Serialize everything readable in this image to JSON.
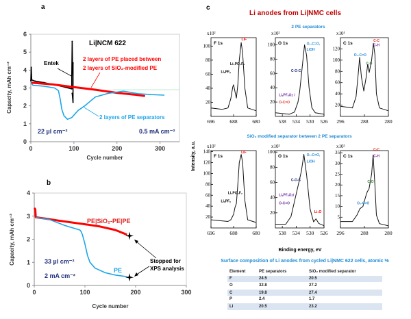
{
  "chart_data": [
    {
      "panel_label": "a",
      "type": "line",
      "xlabel": "Cycle number",
      "ylabel": "Capacity, mAh cm⁻²",
      "xlim": [
        0,
        345
      ],
      "ylim": [
        0,
        6
      ],
      "xticks": [
        "0",
        "100",
        "200",
        "300"
      ],
      "yticks": [
        "0",
        "1",
        "2",
        "3",
        "4",
        "5",
        "6"
      ],
      "grid": false,
      "series": [
        {
          "name": "Entek",
          "color": "#000000",
          "points": [
            [
              0,
              3.4
            ],
            [
              1,
              4.15
            ],
            [
              2,
              3.45
            ],
            [
              10,
              3.38
            ],
            [
              30,
              3.3
            ],
            [
              50,
              3.2
            ],
            [
              70,
              3.1
            ],
            [
              95,
              2.95
            ],
            [
              95,
              3.7
            ],
            [
              96,
              5.6
            ],
            [
              97,
              3.8
            ],
            [
              98,
              4.4
            ],
            [
              98,
              2.2
            ],
            [
              96,
              2.7
            ]
          ]
        },
        {
          "name": "2 layers of PE placed between 2 layers of SiO₂-modified PE",
          "color": "#ff0000",
          "points": [
            [
              0,
              3.3
            ],
            [
              50,
              3.2
            ],
            [
              100,
              3.05
            ],
            [
              150,
              2.9
            ],
            [
              200,
              2.73
            ],
            [
              240,
              2.63
            ],
            [
              265,
              2.55
            ]
          ]
        },
        {
          "name": "2 layers of PE separators",
          "color": "#1ca6e8",
          "points": [
            [
              0,
              3.3
            ],
            [
              5,
              3.15
            ],
            [
              30,
              3.1
            ],
            [
              55,
              3.0
            ],
            [
              64,
              2.85
            ],
            [
              68,
              2.4
            ],
            [
              72,
              1.8
            ],
            [
              77,
              1.45
            ],
            [
              85,
              1.25
            ],
            [
              95,
              1.35
            ],
            [
              110,
              1.75
            ],
            [
              125,
              2.0
            ],
            [
              150,
              2.5
            ],
            [
              180,
              2.7
            ],
            [
              215,
              2.82
            ],
            [
              250,
              2.68
            ],
            [
              280,
              2.63
            ],
            [
              310,
              2.6
            ]
          ]
        },
        {
          "name": "",
          "color": "#b8e6cc",
          "points": [
            [
              190,
              2.9
            ],
            [
              345,
              2.9
            ]
          ]
        }
      ],
      "annotations": [
        "Li|NCM 622",
        "Entek",
        "2 layers of PE placed between",
        "2 layers of SiO₂-modified PE",
        "2 layers of PE separators",
        "22 µl cm⁻²",
        "0.5 mA cm⁻²"
      ]
    },
    {
      "panel_label": "b",
      "type": "line",
      "xlabel": "Cycle number",
      "ylabel": "Capacity, mAh cm⁻²",
      "xlim": [
        0,
        300
      ],
      "ylim": [
        0,
        4
      ],
      "xticks": [
        "0",
        "100",
        "200",
        "300"
      ],
      "yticks": [
        "0",
        "1",
        "2",
        "3",
        "4"
      ],
      "grid": false,
      "series": [
        {
          "name": "PE|SiO₂-PE|PE",
          "color": "#ff0000",
          "points": [
            [
              0,
              3.35
            ],
            [
              2,
              3.3
            ],
            [
              3,
              2.95
            ],
            [
              20,
              2.9
            ],
            [
              50,
              2.8
            ],
            [
              100,
              2.65
            ],
            [
              130,
              2.55
            ],
            [
              160,
              2.4
            ],
            [
              183,
              2.2
            ]
          ]
        },
        {
          "name": "PE",
          "color": "#1ca6e8",
          "points": [
            [
              3,
              2.95
            ],
            [
              30,
              2.85
            ],
            [
              60,
              2.6
            ],
            [
              90,
              2.4
            ],
            [
              92,
              2.35
            ],
            [
              95,
              2.2
            ],
            [
              100,
              1.8
            ],
            [
              105,
              1.3
            ],
            [
              110,
              1.0
            ],
            [
              120,
              0.75
            ],
            [
              140,
              0.55
            ],
            [
              160,
              0.45
            ],
            [
              183,
              0.38
            ]
          ]
        }
      ],
      "markers": [
        [
          188,
          2.15
        ],
        [
          188,
          0.35
        ]
      ],
      "annotations": [
        "PE|SiO₂-PE|PE",
        "PE",
        "33 µl cm⁻²",
        "2 mA cm⁻²",
        "Stopped for",
        "XPS analysis"
      ]
    },
    {
      "panel_label": "c",
      "type": "line",
      "title": "Li anodes from Li|NMC cells",
      "xlabel": "Binding energy, eV",
      "ylabel": "Intensity, a.u.",
      "row_titles": [
        "2 PE separators",
        "SiO₂ modified separator between 2 PE separators"
      ],
      "spectra": [
        {
          "name": "F 1s",
          "multiplier": "x10²",
          "xlim": [
            696,
            680
          ],
          "ylim": [
            0,
            112
          ],
          "xticks": [
            "696",
            "688",
            "680"
          ],
          "yticks": [
            "20",
            "40",
            "60",
            "80",
            "100"
          ],
          "points": [
            [
              696,
              12
            ],
            [
              692,
              10
            ],
            [
              690,
              12
            ],
            [
              689,
              25
            ],
            [
              688.3,
              42
            ],
            [
              688,
              45
            ],
            [
              687.5,
              35
            ],
            [
              687,
              26
            ],
            [
              686.5,
              45
            ],
            [
              686,
              80
            ],
            [
              685.3,
              105
            ],
            [
              684.8,
              90
            ],
            [
              684,
              40
            ],
            [
              683,
              12
            ],
            [
              680,
              8
            ]
          ],
          "labels": [
            {
              "text": "LiF",
              "color": "#ff0000"
            },
            {
              "text": "Li₂PO₂F₂",
              "color": "#000000"
            },
            {
              "text": "LiₓPFᵧ",
              "color": "#000000"
            }
          ]
        },
        {
          "name": "O 1s",
          "multiplier": "x10²",
          "xlim": [
            540,
            526
          ],
          "ylim": [
            0,
            110
          ],
          "xticks": [
            "538",
            "534",
            "530",
            "526"
          ],
          "yticks": [
            "20",
            "40",
            "60",
            "80",
            "100"
          ],
          "points": [
            [
              540,
              5
            ],
            [
              536,
              3
            ],
            [
              534.5,
              6
            ],
            [
              533.5,
              20
            ],
            [
              533,
              35
            ],
            [
              532.5,
              58
            ],
            [
              532,
              82
            ],
            [
              531.6,
              100
            ],
            [
              531,
              85
            ],
            [
              530.3,
              40
            ],
            [
              529.5,
              12
            ],
            [
              528.5,
              5
            ],
            [
              526,
              3
            ]
          ],
          "labels": [
            {
              "text": "O₂-C=O,",
              "color": "#1f8ad6"
            },
            {
              "text": "LiOH",
              "color": "#1f8ad6"
            },
            {
              "text": "C-O-C",
              "color": "#1f2f7a"
            },
            {
              "text": "LiₓPFᵧOz /",
              "color": "#7030a0"
            },
            {
              "text": "O-C=O",
              "color": "#e0302a"
            }
          ]
        },
        {
          "name": "C 1s",
          "multiplier": "x10¹",
          "xlim": [
            296,
            280
          ],
          "ylim": [
            0,
            140
          ],
          "xticks": [
            "296",
            "288",
            "280"
          ],
          "yticks": [
            "20",
            "40",
            "60",
            "80",
            "100",
            "120"
          ],
          "points": [
            [
              296,
              18
            ],
            [
              292,
              15
            ],
            [
              290.8,
              35
            ],
            [
              290,
              80
            ],
            [
              289.6,
              105
            ],
            [
              289,
              70
            ],
            [
              288.2,
              45
            ],
            [
              287.4,
              70
            ],
            [
              286.9,
              93
            ],
            [
              286.4,
              78
            ],
            [
              285.6,
              100
            ],
            [
              285,
              130
            ],
            [
              284.5,
              110
            ],
            [
              284,
              40
            ],
            [
              283,
              15
            ],
            [
              280,
              10
            ]
          ],
          "labels": [
            {
              "text": "C-C",
              "color": "#e0302a"
            },
            {
              "text": "C-H",
              "color": "#7030a0"
            },
            {
              "text": "O₂-C=O",
              "color": "#1f8ad6"
            },
            {
              "text": "C-O",
              "color": "#2e7d32"
            }
          ]
        },
        {
          "name": "F 1s",
          "multiplier": "x10²",
          "xlim": [
            696,
            680
          ],
          "ylim": [
            0,
            142
          ],
          "xticks": [
            "696",
            "688",
            "680"
          ],
          "yticks": [
            "20",
            "40",
            "60",
            "80",
            "100",
            "120",
            "140"
          ],
          "points": [
            [
              696,
              15
            ],
            [
              690,
              12
            ],
            [
              689,
              15
            ],
            [
              688,
              25
            ],
            [
              687.5,
              38
            ],
            [
              687,
              45
            ],
            [
              686.5,
              80
            ],
            [
              686,
              120
            ],
            [
              685.3,
              135
            ],
            [
              684.8,
              120
            ],
            [
              684,
              50
            ],
            [
              683,
              15
            ],
            [
              680,
              10
            ]
          ],
          "labels": [
            {
              "text": "LiF",
              "color": "#ff0000"
            },
            {
              "text": "Li₂PO₂F₂",
              "color": "#000000"
            },
            {
              "text": "LiₓPFᵧ",
              "color": "#000000"
            }
          ]
        },
        {
          "name": "O 1s",
          "multiplier": "x10²",
          "xlim": [
            540,
            526
          ],
          "ylim": [
            0,
            102
          ],
          "xticks": [
            "538",
            "534",
            "530",
            "526"
          ],
          "yticks": [
            "20",
            "40",
            "60",
            "80",
            "100"
          ],
          "points": [
            [
              540,
              5
            ],
            [
              537,
              5
            ],
            [
              535.5,
              15
            ],
            [
              534.5,
              35
            ],
            [
              533.5,
              55
            ],
            [
              532.5,
              75
            ],
            [
              531.8,
              97
            ],
            [
              531,
              70
            ],
            [
              530,
              25
            ],
            [
              529,
              8
            ],
            [
              528.3,
              12
            ],
            [
              527.5,
              6
            ],
            [
              526,
              3
            ]
          ],
          "labels": [
            {
              "text": "O₂-C=O,",
              "color": "#1f8ad6"
            },
            {
              "text": "LiOH",
              "color": "#1f8ad6"
            },
            {
              "text": "C-O-C",
              "color": "#1f2f7a"
            },
            {
              "text": "LiₓPFᵧOz/",
              "color": "#7030a0"
            },
            {
              "text": "O-C=O",
              "color": "#7030a0"
            },
            {
              "text": "Li₂O",
              "color": "#ff0000"
            }
          ]
        },
        {
          "name": "C 1s",
          "multiplier": "x10²",
          "xlim": [
            296,
            280
          ],
          "ylim": [
            0,
            36
          ],
          "xticks": [
            "296",
            "288",
            "280"
          ],
          "yticks": [
            "5",
            "10",
            "15",
            "20",
            "25",
            "30",
            "35"
          ],
          "points": [
            [
              296,
              3
            ],
            [
              292,
              3
            ],
            [
              290.5,
              6
            ],
            [
              289.5,
              9
            ],
            [
              288.5,
              10
            ],
            [
              287.5,
              15
            ],
            [
              287,
              17
            ],
            [
              286.5,
              18
            ],
            [
              285.6,
              25
            ],
            [
              285.1,
              34
            ],
            [
              284.5,
              20
            ],
            [
              284,
              6
            ],
            [
              283,
              2
            ],
            [
              280,
              1
            ]
          ],
          "labels": [
            {
              "text": "C-C",
              "color": "#e0302a"
            },
            {
              "text": "C-H",
              "color": "#7030a0"
            },
            {
              "text": "C-O",
              "color": "#2e7d32"
            },
            {
              "text": "O₂-C=O",
              "color": "#1f8ad6"
            }
          ]
        }
      ]
    }
  ],
  "table": {
    "title": "Surface composition of Li anodes from cycled Li|NMC 622 cells, atomic %",
    "headers": [
      "Element",
      "PE separators",
      "SiO₂ modified separator"
    ],
    "rows": [
      [
        "F",
        "24.5",
        "20.5"
      ],
      [
        "O",
        "32.8",
        "27.2"
      ],
      [
        "C",
        "19.8",
        "27.4"
      ],
      [
        "P",
        "2.4",
        "1.7"
      ],
      [
        "Li",
        "20.5",
        "23.2"
      ]
    ]
  }
}
